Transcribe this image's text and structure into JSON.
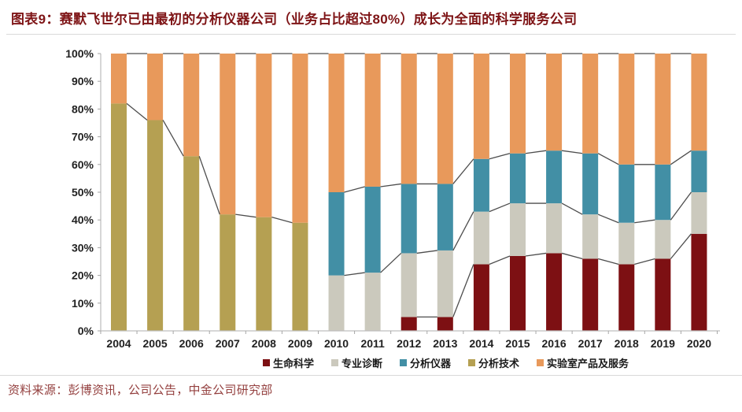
{
  "header": {
    "title": "图表9：赛默飞世尔已由最初的分析仪器公司（业务占比超过80%）成长为全面的科学服务公司"
  },
  "footer": {
    "source": "资料来源：彭博资讯，公司公告，中金公司研究部"
  },
  "colors": {
    "title_text": "#7E1416",
    "source_text": "#94403F",
    "axis_line": "#BFBFBF",
    "tick_mark": "#A6A6A6",
    "axis_label": "#212121",
    "series_line": "#4D4D4D",
    "divider": "#D9D9D9"
  },
  "chart_data": {
    "type": "bar",
    "stacked": true,
    "unit": "%",
    "title": "",
    "xlabel": "",
    "ylabel": "",
    "ylim": [
      0,
      100
    ],
    "grid": false,
    "legend_position": "bottom",
    "series_lines": true,
    "y_ticks": [
      "0%",
      "10%",
      "20%",
      "30%",
      "40%",
      "50%",
      "60%",
      "70%",
      "80%",
      "90%",
      "100%"
    ],
    "categories": [
      "2004",
      "2005",
      "2006",
      "2007",
      "2008",
      "2009",
      "2010",
      "2011",
      "2012",
      "2013",
      "2014",
      "2015",
      "2016",
      "2017",
      "2018",
      "2019",
      "2020"
    ],
    "series": [
      {
        "name": "生命科学",
        "color": "#7D1013",
        "values": [
          0,
          0,
          0,
          0,
          0,
          0,
          0,
          0,
          5,
          5,
          24,
          27,
          28,
          26,
          24,
          26,
          35
        ]
      },
      {
        "name": "专业诊断",
        "color": "#CBC9BD",
        "values": [
          0,
          0,
          0,
          0,
          0,
          0,
          20,
          21,
          23,
          24,
          19,
          19,
          18,
          16,
          15,
          14,
          15
        ]
      },
      {
        "name": "分析仪器",
        "color": "#428FA5",
        "values": [
          0,
          0,
          0,
          0,
          0,
          0,
          30,
          31,
          25,
          24,
          19,
          18,
          19,
          22,
          21,
          20,
          15
        ]
      },
      {
        "name": "分析技术",
        "color": "#B5A052",
        "values": [
          82,
          76,
          63,
          42,
          41,
          39,
          0,
          0,
          0,
          0,
          0,
          0,
          0,
          0,
          0,
          0,
          0
        ]
      },
      {
        "name": "实验室产品及服务",
        "color": "#E8995B",
        "values": [
          18,
          24,
          37,
          58,
          59,
          61,
          50,
          48,
          47,
          47,
          38,
          36,
          35,
          36,
          40,
          40,
          35
        ]
      }
    ]
  }
}
